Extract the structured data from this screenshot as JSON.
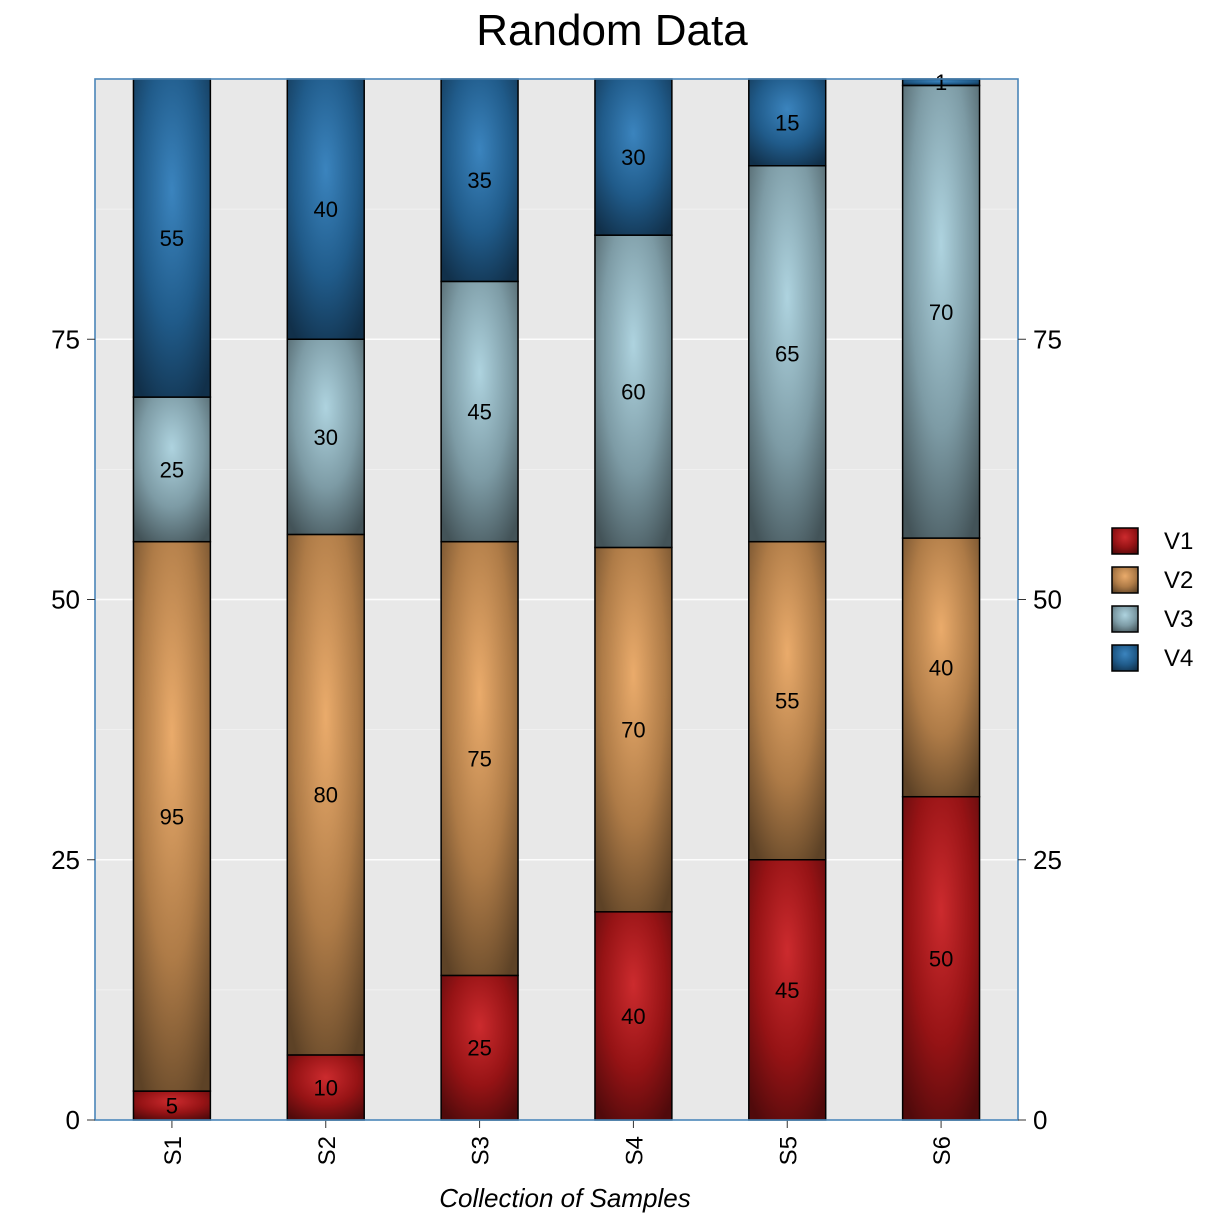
{
  "chart_data": {
    "type": "bar",
    "stacked": "percent",
    "title": "Random Data",
    "xlabel": "Collection of Samples",
    "ylabel": "",
    "categories": [
      "S1",
      "S2",
      "S3",
      "S4",
      "S5",
      "S6"
    ],
    "series": [
      {
        "name": "V1",
        "values": [
          5,
          10,
          25,
          40,
          45,
          50
        ],
        "color": "#c8191c"
      },
      {
        "name": "V2",
        "values": [
          95,
          80,
          75,
          70,
          55,
          40
        ],
        "color": "#e8a45e"
      },
      {
        "name": "V3",
        "values": [
          25,
          30,
          45,
          60,
          65,
          70
        ],
        "color": "#a7cfdc"
      },
      {
        "name": "V4",
        "values": [
          55,
          40,
          35,
          30,
          15,
          1
        ],
        "color": "#2a79b8"
      }
    ],
    "ylim": [
      0,
      100
    ],
    "yticks": [
      0,
      25,
      50,
      75
    ],
    "grid": true,
    "legend_position": "right",
    "panel_background": "#e8e8e8",
    "border_color": "#4a85b8"
  }
}
